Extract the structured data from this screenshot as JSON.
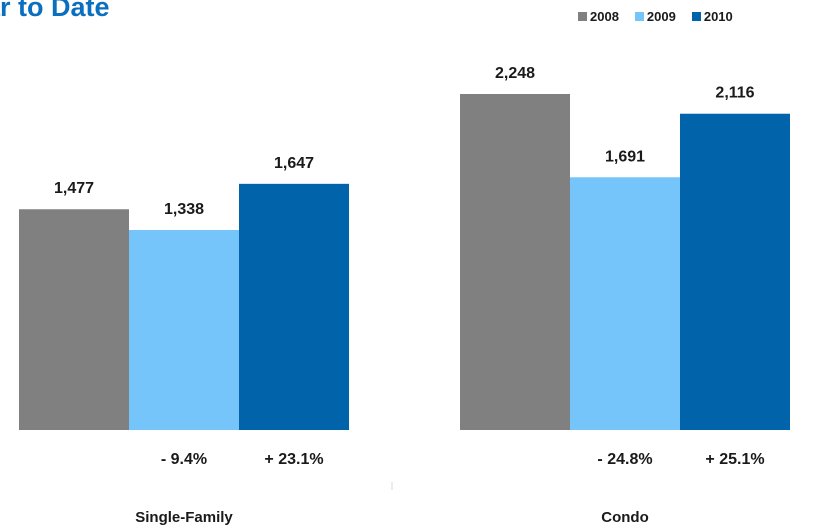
{
  "chart_data": {
    "type": "bar",
    "title": "ear to Date",
    "categories": [
      "Single-Family",
      "Condo"
    ],
    "series": [
      {
        "name": "2008",
        "color": "#808080",
        "values": [
          1477,
          2248
        ],
        "labels": [
          "1,477",
          "2,248"
        ]
      },
      {
        "name": "2009",
        "color": "#75c5fb",
        "values": [
          1338,
          1691
        ],
        "labels": [
          "1,338",
          "1,691"
        ]
      },
      {
        "name": "2010",
        "color": "#0163aa",
        "values": [
          1647,
          2116
        ],
        "labels": [
          "1,647",
          "2,116"
        ]
      }
    ],
    "annotations": [
      {
        "category": "Single-Family",
        "series": "2009",
        "text": "- 9.4%"
      },
      {
        "category": "Single-Family",
        "series": "2010",
        "text": "+ 23.1%"
      },
      {
        "category": "Condo",
        "series": "2009",
        "text": "- 24.8%"
      },
      {
        "category": "Condo",
        "series": "2010",
        "text": "+ 25.1%"
      }
    ],
    "ylim": [
      0,
      2248
    ],
    "grid": false,
    "legend_position": "top-right"
  }
}
